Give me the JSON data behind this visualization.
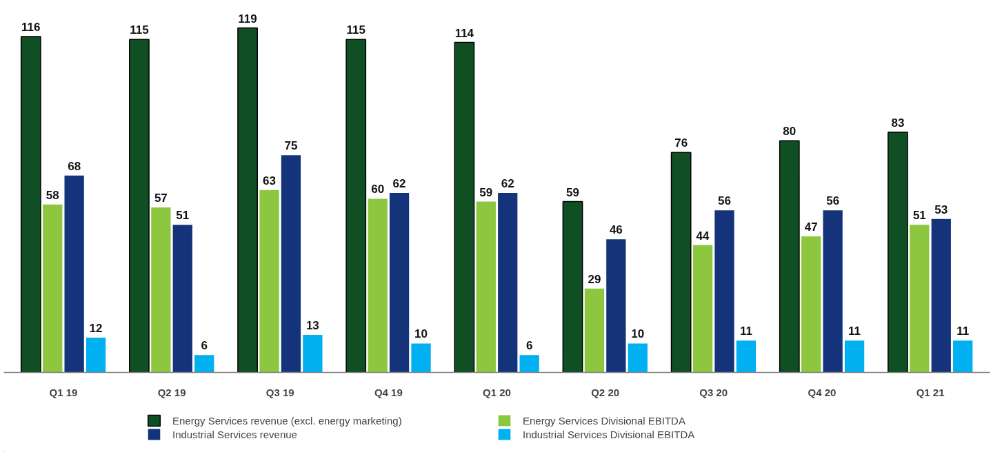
{
  "chart_data": {
    "type": "bar",
    "categories": [
      "Q1 19",
      "Q2 19",
      "Q3 19",
      "Q4 19",
      "Q1 20",
      "Q2 20",
      "Q3 20",
      "Q4 20",
      "Q1 21"
    ],
    "series": [
      {
        "name": "Energy Services revenue (excl. energy marketing)",
        "color": "#0f4f23",
        "values": [
          116,
          115,
          119,
          115,
          114,
          59,
          76,
          80,
          83
        ]
      },
      {
        "name": "Energy Services Divisional EBITDA",
        "color": "#8dc63f",
        "values": [
          58,
          57,
          63,
          60,
          59,
          29,
          44,
          47,
          51
        ]
      },
      {
        "name": "Industrial Services revenue",
        "color": "#14337a",
        "values": [
          68,
          51,
          75,
          62,
          62,
          46,
          56,
          56,
          53
        ]
      },
      {
        "name": "Industrial Services Divisional EBITDA",
        "color": "#00b0f0",
        "values": [
          12,
          6,
          13,
          10,
          6,
          10,
          11,
          11,
          11
        ]
      }
    ],
    "data_labels": true,
    "grid": false,
    "legend": "bottom"
  }
}
